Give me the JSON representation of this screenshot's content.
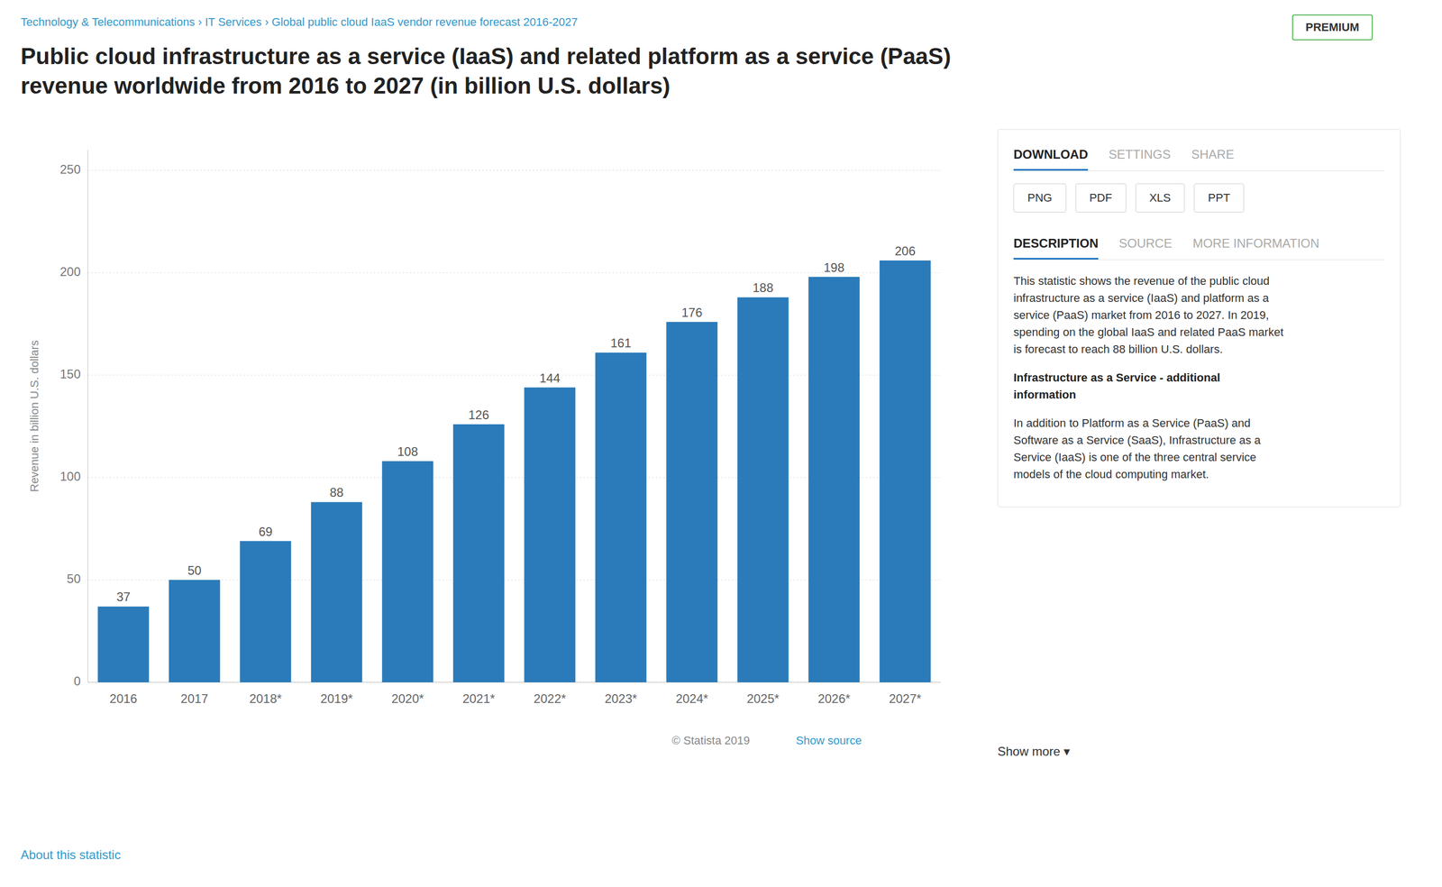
{
  "chart_data": {
    "type": "bar",
    "title": "Public cloud infrastructure as a service (IaaS) and related platform as a service (PaaS)\nrevenue worldwide from 2016 to 2027 (in billion U.S. dollars)",
    "y_label": "Revenue in billion U.S. dollars",
    "categories": [
      "2016",
      "2017",
      "2018*",
      "2019*",
      "2020*",
      "2021*",
      "2022*",
      "2023*",
      "2024*",
      "2025*",
      "2026*",
      "2027*"
    ],
    "values": [
      37,
      50,
      69,
      88,
      108,
      126,
      144,
      161,
      176,
      188,
      198,
      206
    ],
    "color": "#2b7bba",
    "ylim": [
      0,
      260
    ],
    "yticks": [
      0,
      50,
      100,
      150,
      200,
      250
    ],
    "grid": true,
    "data_labels": true,
    "annotations": [
      "Technology & Telecommunications › IT Services › Global public cloud IaaS vendor revenue forecast 2016-2027",
      "© Statista 2019",
      "Show source",
      "About this statistic",
      "Show more ▾",
      "PREMIUM",
      "DOWNLOAD",
      "SETTINGS",
      "SHARE",
      "PNG",
      "PDF",
      "XLS",
      "PPT",
      "DESCRIPTION",
      "SOURCE",
      "MORE INFORMATION",
      "This statistic shows the revenue of the public cloud\ninfrastructure as a service (IaaS) and platform as a\nservice (PaaS) market from 2016 to 2027. In 2019,\nspending on the global IaaS and related PaaS market\nis forecast to reach 88 billion U.S. dollars.",
      "Infrastructure as a Service - additional\ninformation",
      "In addition to Platform as a Service (PaaS) and\nSoftware as a Service (SaaS), Infrastructure as a\nService (IaaS) is one of the three central service\nmodels of the cloud computing market."
    ]
  }
}
